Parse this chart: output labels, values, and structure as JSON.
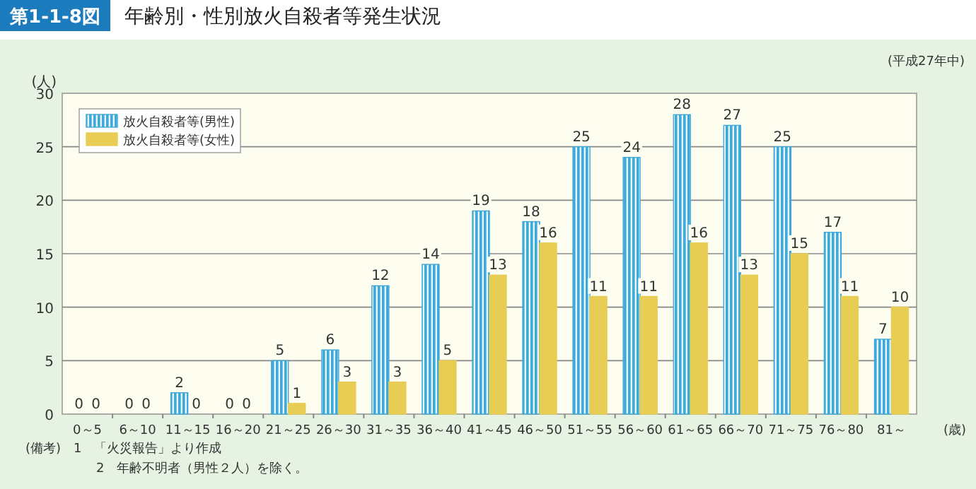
{
  "chart_data": {
    "type": "bar",
    "title": "第1-1-8図 年齢別・性別放火自殺者等発生状況",
    "subtitle": "(平成27年中)",
    "ylabel": "(人)",
    "xlabel": "(歳)",
    "categories": [
      "0～5",
      "6～10",
      "11～15",
      "16～20",
      "21～25",
      "26～30",
      "31～35",
      "36～40",
      "41～45",
      "46～50",
      "51～55",
      "56～60",
      "61～65",
      "66～70",
      "71～75",
      "76～80",
      "81～"
    ],
    "series": [
      {
        "name": "放火自殺者等(男性)",
        "color": "#3fa9d8",
        "values": [
          0,
          0,
          2,
          0,
          5,
          6,
          12,
          14,
          19,
          18,
          25,
          24,
          28,
          27,
          25,
          17,
          7
        ]
      },
      {
        "name": "放火自殺者等(女性)",
        "color": "#e8cd55",
        "values": [
          0,
          0,
          0,
          0,
          1,
          3,
          3,
          5,
          13,
          16,
          11,
          11,
          16,
          13,
          15,
          11,
          10
        ]
      }
    ],
    "ylim": [
      0,
      30
    ],
    "yticks": [
      0,
      5,
      10,
      15,
      20,
      25,
      30
    ],
    "grid": "y",
    "legend": "top left",
    "data_labels": true,
    "annotations": [
      "(備考)　1　「火災報告」より作成",
      "2　年齢不明者（男性２人）を除く。"
    ]
  }
}
